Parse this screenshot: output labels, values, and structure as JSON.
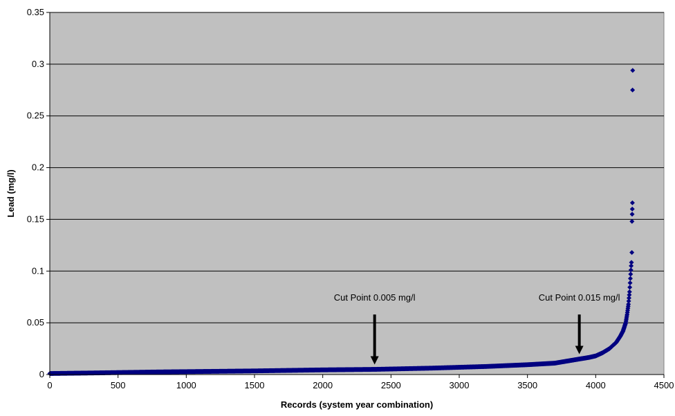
{
  "chart_data": {
    "type": "scatter",
    "title": "",
    "xlabel": "Records (system year combination)",
    "ylabel": "Lead (mg/l)",
    "xlim": [
      0,
      4500
    ],
    "ylim": [
      0,
      0.35
    ],
    "x_ticks": [
      0,
      500,
      1000,
      1500,
      2000,
      2500,
      3000,
      3500,
      4000,
      4500
    ],
    "x_tick_labels": [
      "0",
      "500",
      "1000",
      "1500",
      "2000",
      "2500",
      "3000",
      "3500",
      "4000",
      "4500"
    ],
    "y_ticks": [
      0,
      0.05,
      0.1,
      0.15,
      0.2,
      0.25,
      0.3,
      0.35
    ],
    "y_tick_labels": [
      "0",
      "0.05",
      "0.1",
      "0.15",
      "0.2",
      "0.25",
      "0.3",
      "0.35"
    ],
    "grid": "horizontal",
    "legend": "none",
    "colors": {
      "plot_background": "#c0c0c0",
      "marker": "#000080",
      "gridline": "#000000"
    },
    "marker_shape": "diamond",
    "curve_points": [
      [
        0,
        0.001
      ],
      [
        300,
        0.0015
      ],
      [
        800,
        0.0025
      ],
      [
        1500,
        0.0035
      ],
      [
        2000,
        0.0045
      ],
      [
        2380,
        0.005
      ],
      [
        2800,
        0.0062
      ],
      [
        3200,
        0.0078
      ],
      [
        3500,
        0.0095
      ],
      [
        3700,
        0.011
      ],
      [
        3880,
        0.015
      ],
      [
        3950,
        0.0165
      ],
      [
        4000,
        0.018
      ],
      [
        4050,
        0.021
      ],
      [
        4100,
        0.025
      ],
      [
        4150,
        0.031
      ],
      [
        4180,
        0.037
      ],
      [
        4200,
        0.042
      ],
      [
        4220,
        0.05
      ],
      [
        4230,
        0.058
      ],
      [
        4240,
        0.068
      ],
      [
        4248,
        0.08
      ],
      [
        4255,
        0.095
      ],
      [
        4260,
        0.105
      ],
      [
        4263,
        0.11
      ]
    ],
    "extra_points": [
      [
        4265,
        0.118
      ],
      [
        4266,
        0.148
      ],
      [
        4267,
        0.155
      ],
      [
        4268,
        0.16
      ],
      [
        4269,
        0.166
      ],
      [
        4270,
        0.275
      ],
      [
        4271,
        0.294
      ]
    ],
    "annotations": [
      {
        "label": "Cut Point 0.005 mg/l",
        "x": 2380,
        "y": 0.005,
        "arrow_from_y": 0.058
      },
      {
        "label": "Cut Point 0.015 mg/l",
        "x": 3880,
        "y": 0.015,
        "arrow_from_y": 0.058
      }
    ]
  }
}
